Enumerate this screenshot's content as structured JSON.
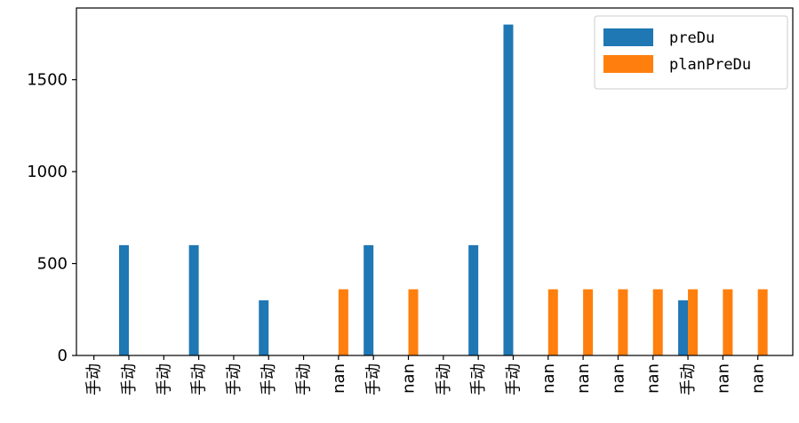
{
  "chart_data": {
    "type": "bar",
    "categories": [
      "手动",
      "手动",
      "手动",
      "手动",
      "手动",
      "手动",
      "手动",
      "nan",
      "手动",
      "nan",
      "手动",
      "手动",
      "手动",
      "nan",
      "nan",
      "nan",
      "nan",
      "手动",
      "nan",
      "nan"
    ],
    "series": [
      {
        "name": "preDu",
        "color": "#1f77b4",
        "values": [
          0,
          600,
          0,
          600,
          0,
          300,
          0,
          0,
          600,
          0,
          0,
          600,
          1800,
          0,
          0,
          0,
          0,
          300,
          0,
          0
        ]
      },
      {
        "name": "planPreDu",
        "color": "#ff7f0e",
        "values": [
          0,
          0,
          0,
          0,
          0,
          0,
          0,
          360,
          0,
          360,
          0,
          0,
          0,
          360,
          360,
          360,
          360,
          360,
          360,
          360
        ]
      }
    ],
    "yticks": [
      0,
      500,
      1000,
      1500
    ],
    "ylim": [
      0,
      1890
    ],
    "legend_position": "top-right",
    "grid": false
  }
}
